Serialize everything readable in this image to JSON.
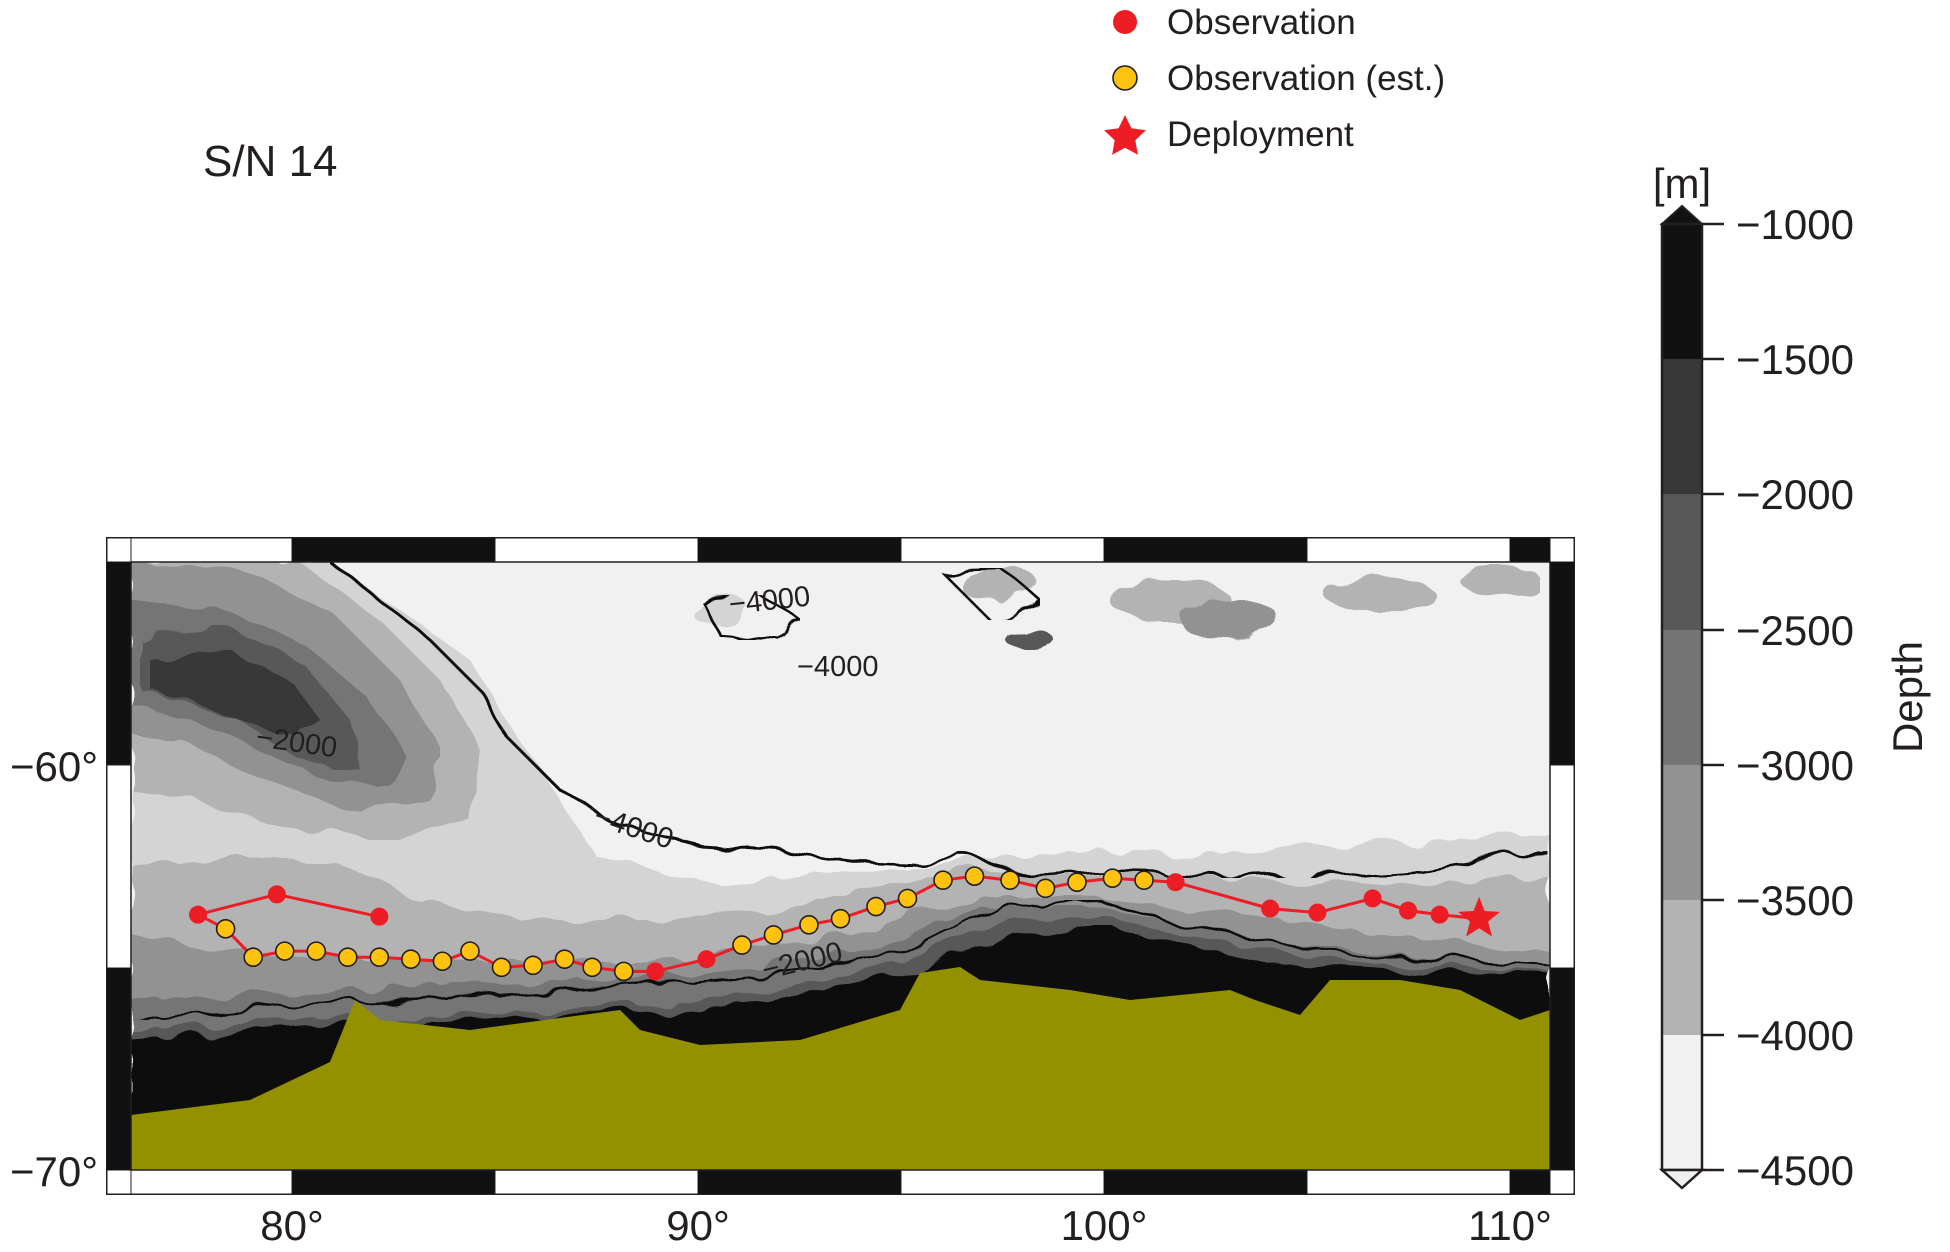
{
  "title": "S/N 14",
  "legend": {
    "observation": "Observation",
    "observation_est": "Observation (est.)",
    "deployment": "Deployment"
  },
  "colorbar": {
    "unit": "[m]",
    "label": "Depth",
    "ticks": [
      "−1000",
      "−1500",
      "−2000",
      "−2500",
      "−3000",
      "−3500",
      "−4000",
      "−4500"
    ]
  },
  "axes": {
    "x_ticks": [
      "80°",
      "90°",
      "100°",
      "110°"
    ],
    "y_ticks": [
      "−60°",
      "−70°"
    ]
  },
  "contour_labels": [
    "−4000",
    "−4000",
    "−2000",
    "−4000",
    "−2000"
  ],
  "colors": {
    "land": "#949100",
    "observation": "#ee1c25",
    "observation_est": "#ffc20e",
    "track": "#ee1c25",
    "depth_levels": [
      "#111111",
      "#383838",
      "#585858",
      "#747474",
      "#929292",
      "#b3b3b3",
      "#d4d4d4",
      "#f1f1f1"
    ]
  },
  "chart_data": {
    "type": "map",
    "xlim": [
      75.5,
      111.5
    ],
    "ylim": [
      -70.5,
      -55.5
    ],
    "deployment": {
      "lon": 109.7,
      "lat": -64.3
    },
    "track": [
      {
        "lon": 109.7,
        "lat": -64.3,
        "est": false
      },
      {
        "lon": 108.7,
        "lat": -64.2,
        "est": false
      },
      {
        "lon": 107.9,
        "lat": -64.1,
        "est": false
      },
      {
        "lon": 107.0,
        "lat": -63.8,
        "est": false
      },
      {
        "lon": 105.6,
        "lat": -64.15,
        "est": false
      },
      {
        "lon": 104.4,
        "lat": -64.05,
        "est": false
      },
      {
        "lon": 102.0,
        "lat": -63.4,
        "est": false
      },
      {
        "lon": 101.2,
        "lat": -63.35,
        "est": true
      },
      {
        "lon": 100.4,
        "lat": -63.3,
        "est": true
      },
      {
        "lon": 99.5,
        "lat": -63.4,
        "est": true
      },
      {
        "lon": 98.7,
        "lat": -63.55,
        "est": true
      },
      {
        "lon": 97.8,
        "lat": -63.35,
        "est": true
      },
      {
        "lon": 96.9,
        "lat": -63.25,
        "est": true
      },
      {
        "lon": 96.1,
        "lat": -63.35,
        "est": true
      },
      {
        "lon": 95.2,
        "lat": -63.8,
        "est": true
      },
      {
        "lon": 94.4,
        "lat": -64.0,
        "est": true
      },
      {
        "lon": 93.5,
        "lat": -64.3,
        "est": true
      },
      {
        "lon": 92.7,
        "lat": -64.45,
        "est": true
      },
      {
        "lon": 91.8,
        "lat": -64.7,
        "est": true
      },
      {
        "lon": 91.0,
        "lat": -64.95,
        "est": true
      },
      {
        "lon": 90.1,
        "lat": -65.3,
        "est": false
      },
      {
        "lon": 88.8,
        "lat": -65.6,
        "est": false
      },
      {
        "lon": 88.0,
        "lat": -65.6,
        "est": true
      },
      {
        "lon": 87.2,
        "lat": -65.5,
        "est": true
      },
      {
        "lon": 86.5,
        "lat": -65.3,
        "est": true
      },
      {
        "lon": 85.7,
        "lat": -65.45,
        "est": true
      },
      {
        "lon": 84.9,
        "lat": -65.5,
        "est": true
      },
      {
        "lon": 84.1,
        "lat": -65.1,
        "est": true
      },
      {
        "lon": 83.4,
        "lat": -65.35,
        "est": true
      },
      {
        "lon": 82.6,
        "lat": -65.3,
        "est": true
      },
      {
        "lon": 81.8,
        "lat": -65.25,
        "est": true
      },
      {
        "lon": 81.0,
        "lat": -65.25,
        "est": true
      },
      {
        "lon": 80.2,
        "lat": -65.1,
        "est": true
      },
      {
        "lon": 79.4,
        "lat": -65.1,
        "est": true
      },
      {
        "lon": 78.6,
        "lat": -65.25,
        "est": true
      },
      {
        "lon": 77.9,
        "lat": -64.55,
        "est": true
      },
      {
        "lon": 77.2,
        "lat": -64.2,
        "est": false
      },
      {
        "lon": 79.2,
        "lat": -63.7,
        "est": false
      },
      {
        "lon": 81.8,
        "lat": -64.25,
        "est": false
      }
    ]
  }
}
